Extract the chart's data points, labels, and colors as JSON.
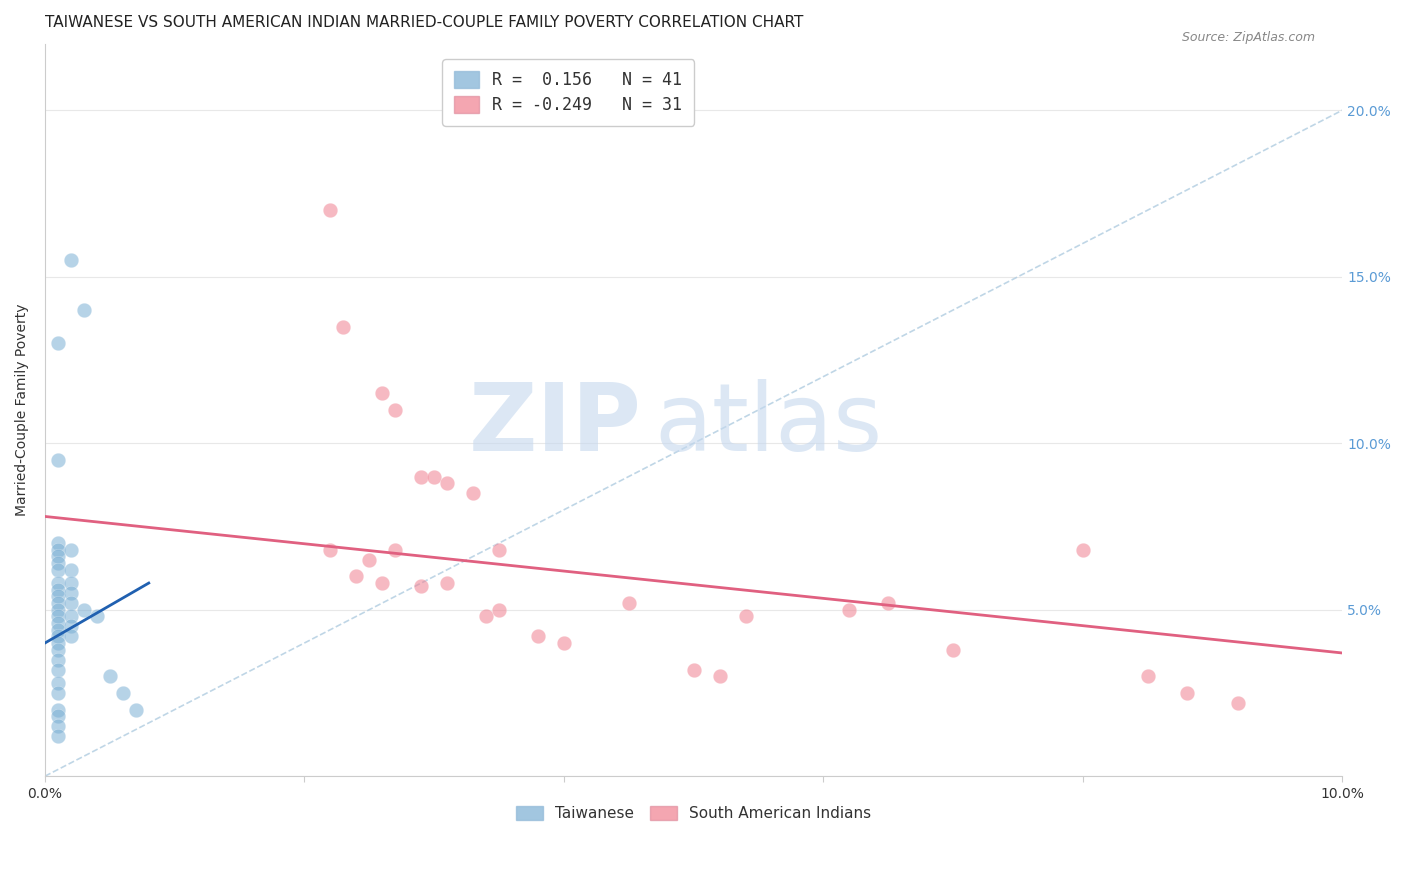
{
  "title": "TAIWANESE VS SOUTH AMERICAN INDIAN MARRIED-COUPLE FAMILY POVERTY CORRELATION CHART",
  "source": "Source: ZipAtlas.com",
  "xlabel": "",
  "ylabel": "Married-Couple Family Poverty",
  "xlim": [
    0.0,
    0.1
  ],
  "ylim": [
    0.0,
    0.22
  ],
  "xticks": [
    0.0,
    0.02,
    0.04,
    0.06,
    0.08,
    0.1
  ],
  "yticks": [
    0.0,
    0.05,
    0.1,
    0.15,
    0.2
  ],
  "xticklabels": [
    "0.0%",
    "",
    "",
    "",
    "",
    "10.0%"
  ],
  "yticklabels_right": [
    "",
    "5.0%",
    "10.0%",
    "15.0%",
    "20.0%"
  ],
  "legend_items": [
    {
      "label": "R =  0.156   N = 41",
      "color": "#a8c4e0"
    },
    {
      "label": "R = -0.249   N = 31",
      "color": "#f4a0b0"
    }
  ],
  "taiwanese_color": "#7bafd4",
  "south_american_color": "#f08090",
  "taiwanese_scatter": [
    [
      0.001,
      0.13
    ],
    [
      0.002,
      0.155
    ],
    [
      0.003,
      0.14
    ],
    [
      0.001,
      0.095
    ],
    [
      0.001,
      0.07
    ],
    [
      0.001,
      0.068
    ],
    [
      0.001,
      0.066
    ],
    [
      0.001,
      0.064
    ],
    [
      0.001,
      0.062
    ],
    [
      0.001,
      0.058
    ],
    [
      0.001,
      0.056
    ],
    [
      0.001,
      0.054
    ],
    [
      0.001,
      0.052
    ],
    [
      0.001,
      0.05
    ],
    [
      0.001,
      0.048
    ],
    [
      0.001,
      0.046
    ],
    [
      0.001,
      0.044
    ],
    [
      0.001,
      0.042
    ],
    [
      0.001,
      0.04
    ],
    [
      0.001,
      0.038
    ],
    [
      0.001,
      0.035
    ],
    [
      0.001,
      0.032
    ],
    [
      0.001,
      0.028
    ],
    [
      0.001,
      0.025
    ],
    [
      0.001,
      0.02
    ],
    [
      0.001,
      0.018
    ],
    [
      0.001,
      0.015
    ],
    [
      0.001,
      0.012
    ],
    [
      0.002,
      0.068
    ],
    [
      0.002,
      0.062
    ],
    [
      0.002,
      0.058
    ],
    [
      0.002,
      0.055
    ],
    [
      0.002,
      0.052
    ],
    [
      0.002,
      0.048
    ],
    [
      0.002,
      0.045
    ],
    [
      0.002,
      0.042
    ],
    [
      0.003,
      0.05
    ],
    [
      0.004,
      0.048
    ],
    [
      0.005,
      0.03
    ],
    [
      0.006,
      0.025
    ],
    [
      0.007,
      0.02
    ]
  ],
  "south_american_scatter": [
    [
      0.022,
      0.17
    ],
    [
      0.023,
      0.135
    ],
    [
      0.026,
      0.115
    ],
    [
      0.027,
      0.11
    ],
    [
      0.029,
      0.09
    ],
    [
      0.03,
      0.09
    ],
    [
      0.031,
      0.088
    ],
    [
      0.033,
      0.085
    ],
    [
      0.022,
      0.068
    ],
    [
      0.025,
      0.065
    ],
    [
      0.027,
      0.068
    ],
    [
      0.035,
      0.068
    ],
    [
      0.024,
      0.06
    ],
    [
      0.026,
      0.058
    ],
    [
      0.029,
      0.057
    ],
    [
      0.031,
      0.058
    ],
    [
      0.034,
      0.048
    ],
    [
      0.035,
      0.05
    ],
    [
      0.038,
      0.042
    ],
    [
      0.04,
      0.04
    ],
    [
      0.045,
      0.052
    ],
    [
      0.05,
      0.032
    ],
    [
      0.052,
      0.03
    ],
    [
      0.054,
      0.048
    ],
    [
      0.062,
      0.05
    ],
    [
      0.065,
      0.052
    ],
    [
      0.07,
      0.038
    ],
    [
      0.08,
      0.068
    ],
    [
      0.085,
      0.03
    ],
    [
      0.088,
      0.025
    ],
    [
      0.092,
      0.022
    ]
  ],
  "taiwanese_line": {
    "x0": 0.0,
    "y0": 0.04,
    "x1": 0.008,
    "y1": 0.058
  },
  "south_american_line": {
    "x0": 0.0,
    "y0": 0.078,
    "x1": 0.1,
    "y1": 0.037
  },
  "dashed_line": {
    "x0": 0.0,
    "y0": 0.0,
    "x1": 0.1,
    "y1": 0.2
  },
  "watermark_zip": "ZIP",
  "watermark_atlas": "atlas",
  "background_color": "#ffffff",
  "grid_color": "#e8e8e8",
  "title_fontsize": 11,
  "axis_label_fontsize": 10,
  "tick_fontsize": 10,
  "right_tick_color": "#5b9bd5",
  "watermark_color": "#d0dff0"
}
